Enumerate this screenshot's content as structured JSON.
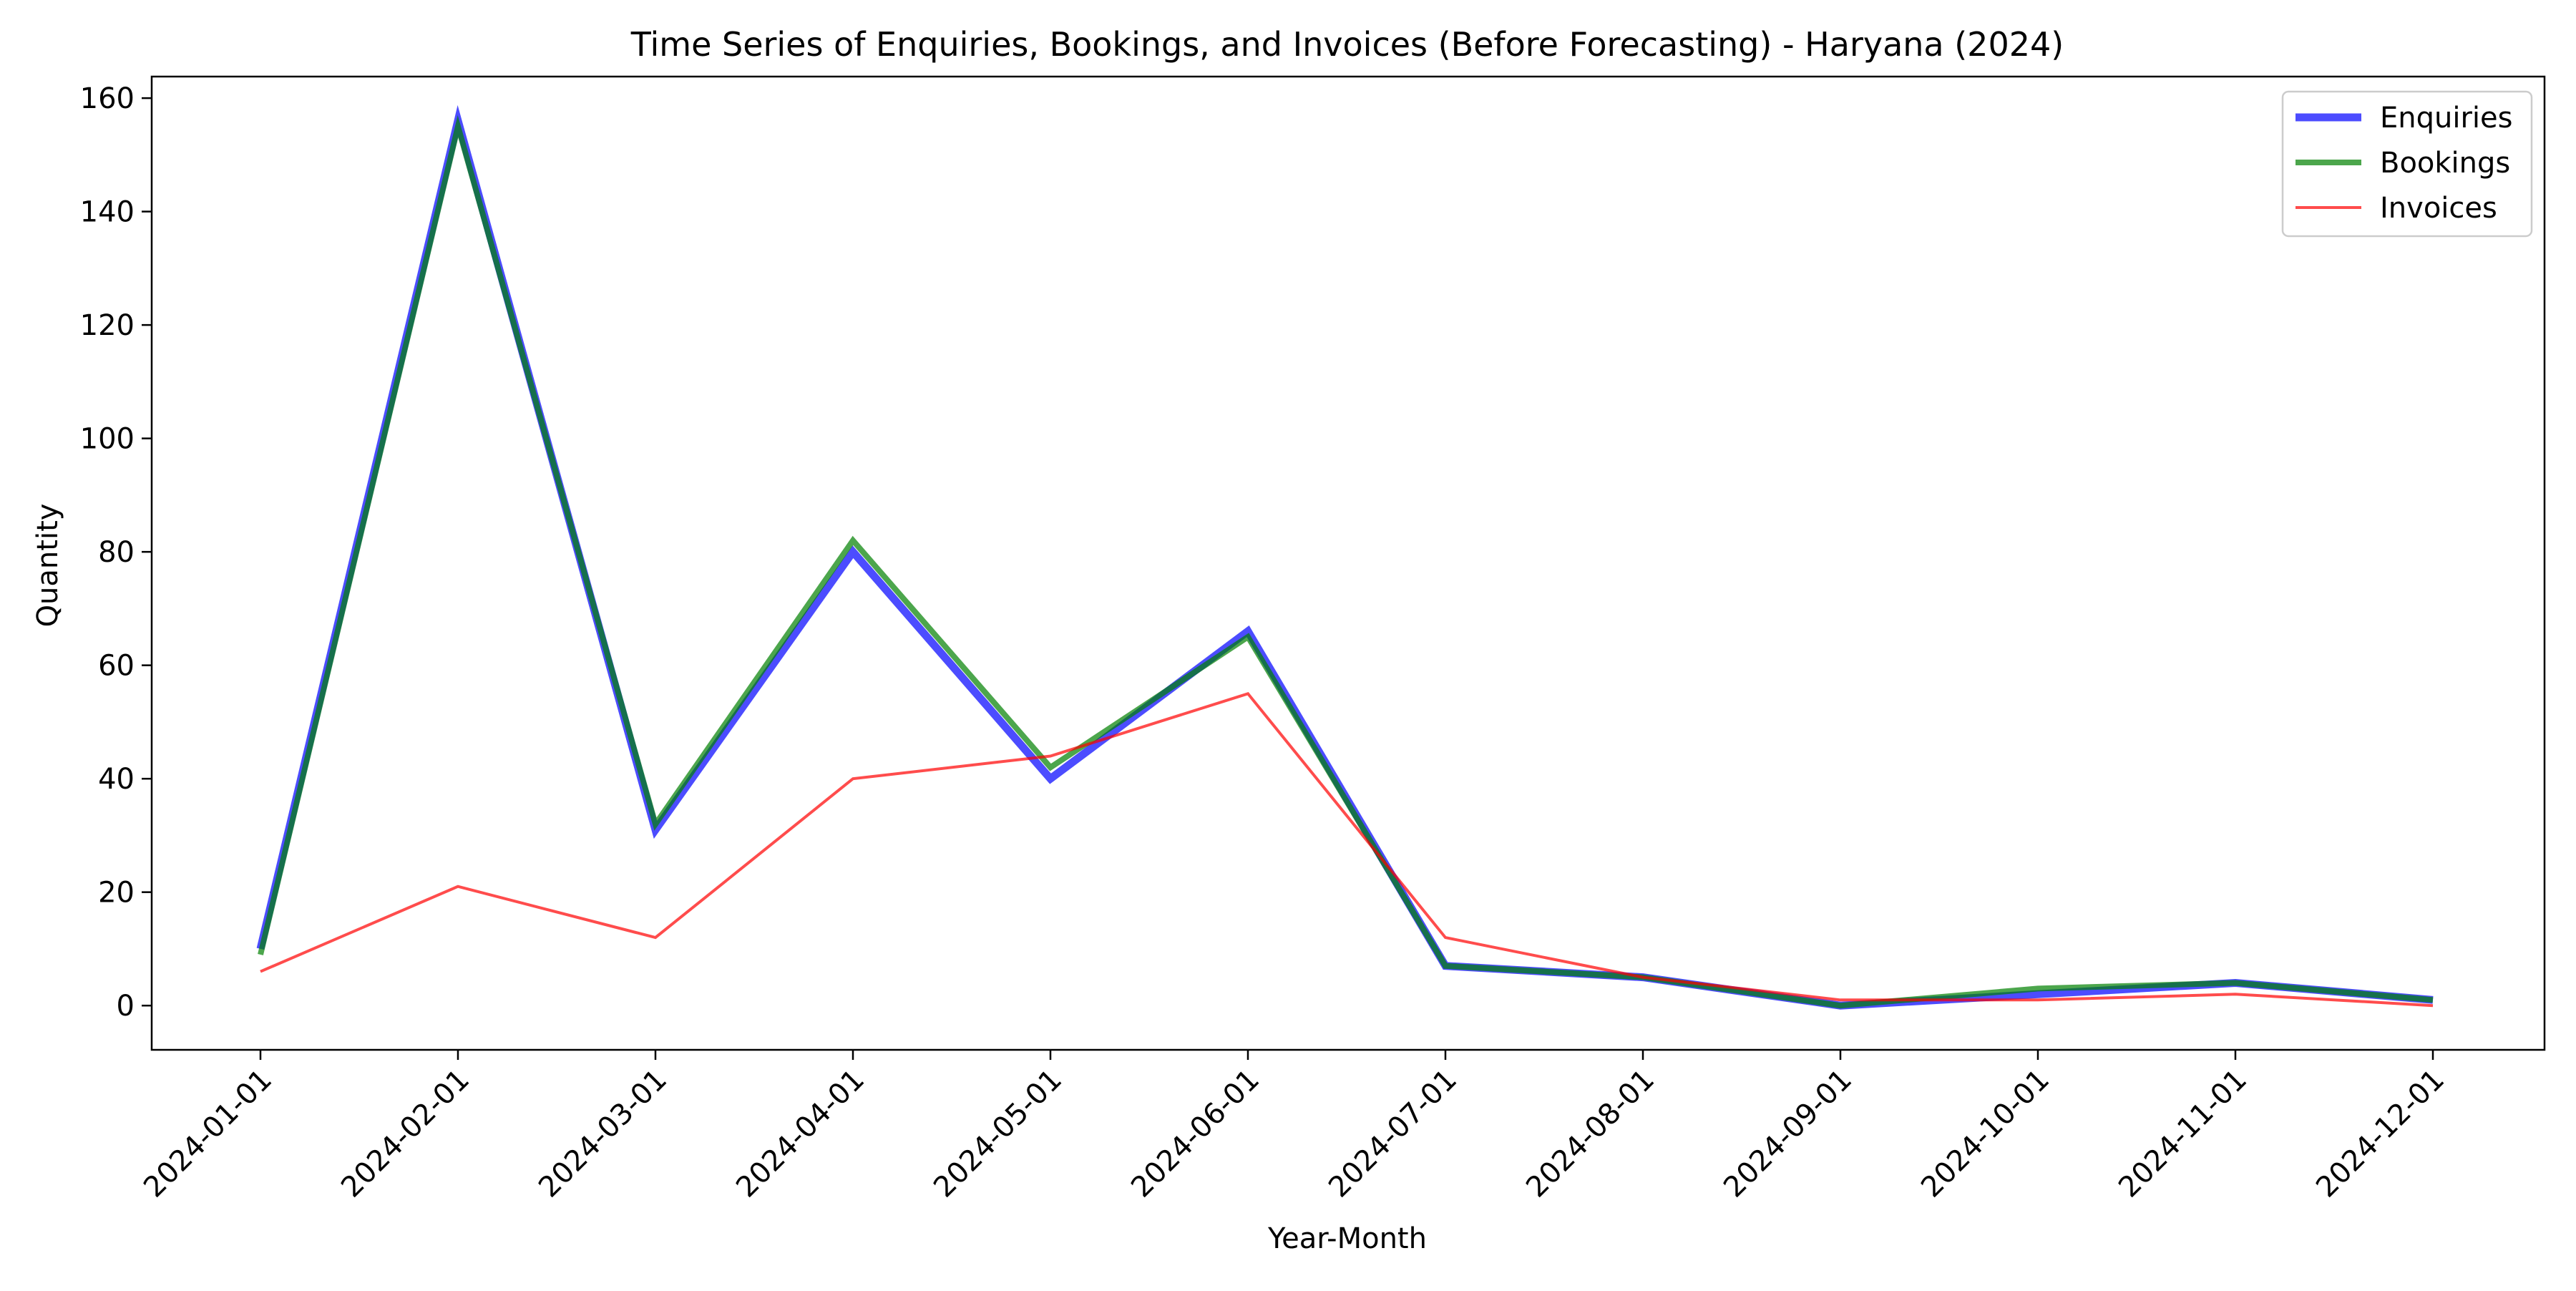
{
  "chart_data": {
    "type": "line",
    "title": "Time Series of Enquiries, Bookings, and Invoices (Before Forecasting) - Haryana (2024)",
    "xlabel": "Year-Month",
    "ylabel": "Quantity",
    "x": [
      "2024-01-01",
      "2024-02-01",
      "2024-03-01",
      "2024-04-01",
      "2024-05-01",
      "2024-06-01",
      "2024-07-01",
      "2024-08-01",
      "2024-09-01",
      "2024-10-01",
      "2024-11-01",
      "2024-12-01"
    ],
    "ylim": [
      -7.8,
      163.8
    ],
    "yticks": [
      0,
      20,
      40,
      60,
      80,
      100,
      120,
      140,
      160
    ],
    "grid": false,
    "legend_position": "upper right",
    "series": [
      {
        "name": "Enquiries",
        "color": "#0000ff",
        "values": [
          10,
          156,
          31,
          80,
          40,
          66,
          7,
          5,
          0,
          2,
          4,
          1
        ]
      },
      {
        "name": "Bookings",
        "color": "#008000",
        "values": [
          9,
          155,
          32,
          82,
          42,
          65,
          7,
          5,
          0,
          3,
          4,
          1
        ]
      },
      {
        "name": "Invoices",
        "color": "#ff0000",
        "values": [
          6,
          21,
          12,
          40,
          44,
          55,
          12,
          5,
          1,
          1,
          2,
          0
        ]
      }
    ]
  }
}
